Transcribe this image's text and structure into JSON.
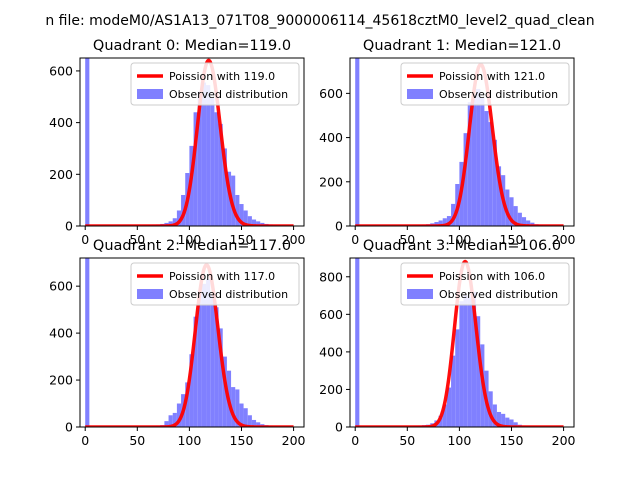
{
  "figure_title": "n file: modeM0/AS1A13_071T08_9000006114_45618cztM0_level2_quad_clean",
  "chart_data": [
    {
      "type": "bar",
      "title": "Quadrant 0: Median=119.0",
      "xlim": [
        -5,
        210
      ],
      "ylim": [
        0,
        650
      ],
      "xticks": [
        0,
        50,
        100,
        150,
        200
      ],
      "yticks": [
        0,
        200,
        400,
        600
      ],
      "poisson_mean": 119.0,
      "legend": [
        "Poission with 119.0",
        "Observed distribution"
      ],
      "legend_position": "top-right",
      "series": [
        {
          "name": "Observed distribution",
          "type": "histogram",
          "bin_width": 4,
          "bins": [
            {
              "x": 0,
              "y": 650
            },
            {
              "x": 52,
              "y": 2
            },
            {
              "x": 56,
              "y": 3
            },
            {
              "x": 60,
              "y": 4
            },
            {
              "x": 64,
              "y": 5
            },
            {
              "x": 68,
              "y": 6
            },
            {
              "x": 72,
              "y": 8
            },
            {
              "x": 76,
              "y": 12
            },
            {
              "x": 80,
              "y": 18
            },
            {
              "x": 84,
              "y": 30
            },
            {
              "x": 88,
              "y": 60
            },
            {
              "x": 92,
              "y": 120
            },
            {
              "x": 96,
              "y": 205
            },
            {
              "x": 100,
              "y": 310
            },
            {
              "x": 104,
              "y": 440
            },
            {
              "x": 108,
              "y": 520
            },
            {
              "x": 112,
              "y": 555
            },
            {
              "x": 116,
              "y": 545
            },
            {
              "x": 120,
              "y": 495
            },
            {
              "x": 124,
              "y": 440
            },
            {
              "x": 128,
              "y": 395
            },
            {
              "x": 132,
              "y": 300
            },
            {
              "x": 136,
              "y": 210
            },
            {
              "x": 140,
              "y": 195
            },
            {
              "x": 144,
              "y": 120
            },
            {
              "x": 148,
              "y": 85
            },
            {
              "x": 152,
              "y": 60
            },
            {
              "x": 156,
              "y": 38
            },
            {
              "x": 160,
              "y": 25
            },
            {
              "x": 164,
              "y": 18
            },
            {
              "x": 168,
              "y": 12
            },
            {
              "x": 172,
              "y": 8
            },
            {
              "x": 176,
              "y": 6
            },
            {
              "x": 180,
              "y": 4
            },
            {
              "x": 184,
              "y": 3
            },
            {
              "x": 188,
              "y": 2
            }
          ]
        },
        {
          "name": "Poission with 119.0",
          "type": "line",
          "peak": 640,
          "x_range": [
            0,
            200
          ]
        }
      ]
    },
    {
      "type": "bar",
      "title": "Quadrant 1: Median=121.0",
      "xlim": [
        -5,
        210
      ],
      "ylim": [
        0,
        760
      ],
      "xticks": [
        0,
        50,
        100,
        150,
        200
      ],
      "yticks": [
        0,
        200,
        400,
        600
      ],
      "poisson_mean": 121.0,
      "legend": [
        "Poission with 121.0",
        "Observed distribution"
      ],
      "legend_position": "top-right",
      "series": [
        {
          "name": "Observed distribution",
          "type": "histogram",
          "bin_width": 4,
          "bins": [
            {
              "x": 0,
              "y": 760
            },
            {
              "x": 56,
              "y": 3
            },
            {
              "x": 60,
              "y": 4
            },
            {
              "x": 64,
              "y": 6
            },
            {
              "x": 68,
              "y": 8
            },
            {
              "x": 72,
              "y": 12
            },
            {
              "x": 76,
              "y": 18
            },
            {
              "x": 80,
              "y": 25
            },
            {
              "x": 84,
              "y": 35
            },
            {
              "x": 88,
              "y": 45
            },
            {
              "x": 92,
              "y": 100
            },
            {
              "x": 96,
              "y": 190
            },
            {
              "x": 100,
              "y": 290
            },
            {
              "x": 104,
              "y": 420
            },
            {
              "x": 108,
              "y": 560
            },
            {
              "x": 112,
              "y": 600
            },
            {
              "x": 116,
              "y": 620
            },
            {
              "x": 120,
              "y": 580
            },
            {
              "x": 124,
              "y": 520
            },
            {
              "x": 128,
              "y": 470
            },
            {
              "x": 132,
              "y": 390
            },
            {
              "x": 136,
              "y": 270
            },
            {
              "x": 140,
              "y": 230
            },
            {
              "x": 144,
              "y": 165
            },
            {
              "x": 148,
              "y": 130
            },
            {
              "x": 152,
              "y": 90
            },
            {
              "x": 156,
              "y": 60
            },
            {
              "x": 160,
              "y": 40
            },
            {
              "x": 164,
              "y": 25
            },
            {
              "x": 168,
              "y": 15
            },
            {
              "x": 172,
              "y": 8
            },
            {
              "x": 176,
              "y": 5
            },
            {
              "x": 180,
              "y": 3
            },
            {
              "x": 184,
              "y": 2
            }
          ]
        },
        {
          "name": "Poission with 121.0",
          "type": "line",
          "peak": 730,
          "x_range": [
            0,
            200
          ]
        }
      ]
    },
    {
      "type": "bar",
      "title": "Quadrant 2: Median=117.0",
      "xlim": [
        -5,
        210
      ],
      "ylim": [
        0,
        720
      ],
      "xticks": [
        0,
        50,
        100,
        150,
        200
      ],
      "yticks": [
        0,
        200,
        400,
        600
      ],
      "poisson_mean": 117.0,
      "legend": [
        "Poission with 117.0",
        "Observed distribution"
      ],
      "legend_position": "top-right",
      "series": [
        {
          "name": "Observed distribution",
          "type": "histogram",
          "bin_width": 4,
          "bins": [
            {
              "x": 0,
              "y": 720
            },
            {
              "x": 56,
              "y": 2
            },
            {
              "x": 60,
              "y": 3
            },
            {
              "x": 64,
              "y": 4
            },
            {
              "x": 68,
              "y": 5
            },
            {
              "x": 72,
              "y": 8
            },
            {
              "x": 76,
              "y": 25
            },
            {
              "x": 80,
              "y": 50
            },
            {
              "x": 84,
              "y": 60
            },
            {
              "x": 88,
              "y": 100
            },
            {
              "x": 92,
              "y": 140
            },
            {
              "x": 96,
              "y": 190
            },
            {
              "x": 100,
              "y": 310
            },
            {
              "x": 104,
              "y": 470
            },
            {
              "x": 108,
              "y": 580
            },
            {
              "x": 112,
              "y": 610
            },
            {
              "x": 116,
              "y": 630
            },
            {
              "x": 120,
              "y": 560
            },
            {
              "x": 124,
              "y": 510
            },
            {
              "x": 128,
              "y": 420
            },
            {
              "x": 132,
              "y": 300
            },
            {
              "x": 136,
              "y": 240
            },
            {
              "x": 140,
              "y": 170
            },
            {
              "x": 144,
              "y": 160
            },
            {
              "x": 148,
              "y": 100
            },
            {
              "x": 152,
              "y": 80
            },
            {
              "x": 156,
              "y": 50
            },
            {
              "x": 160,
              "y": 30
            },
            {
              "x": 164,
              "y": 20
            },
            {
              "x": 168,
              "y": 12
            },
            {
              "x": 172,
              "y": 8
            },
            {
              "x": 176,
              "y": 5
            },
            {
              "x": 180,
              "y": 3
            },
            {
              "x": 184,
              "y": 2
            }
          ]
        },
        {
          "name": "Poission with 117.0",
          "type": "line",
          "peak": 690,
          "x_range": [
            0,
            200
          ]
        }
      ]
    },
    {
      "type": "bar",
      "title": "Quadrant 3: Median=106.0",
      "xlim": [
        -5,
        210
      ],
      "ylim": [
        0,
        900
      ],
      "xticks": [
        0,
        50,
        100,
        150,
        200
      ],
      "yticks": [
        0,
        200,
        400,
        600,
        800
      ],
      "poisson_mean": 106.0,
      "legend": [
        "Poission with 106.0",
        "Observed distribution"
      ],
      "legend_position": "top-right",
      "series": [
        {
          "name": "Observed distribution",
          "type": "histogram",
          "bin_width": 4,
          "bins": [
            {
              "x": 0,
              "y": 900
            },
            {
              "x": 48,
              "y": 2
            },
            {
              "x": 52,
              "y": 4
            },
            {
              "x": 56,
              "y": 6
            },
            {
              "x": 60,
              "y": 8
            },
            {
              "x": 64,
              "y": 10
            },
            {
              "x": 68,
              "y": 12
            },
            {
              "x": 72,
              "y": 20
            },
            {
              "x": 76,
              "y": 35
            },
            {
              "x": 80,
              "y": 60
            },
            {
              "x": 84,
              "y": 120
            },
            {
              "x": 88,
              "y": 210
            },
            {
              "x": 92,
              "y": 380
            },
            {
              "x": 96,
              "y": 520
            },
            {
              "x": 100,
              "y": 670
            },
            {
              "x": 104,
              "y": 700
            },
            {
              "x": 108,
              "y": 690
            },
            {
              "x": 112,
              "y": 720
            },
            {
              "x": 116,
              "y": 590
            },
            {
              "x": 120,
              "y": 440
            },
            {
              "x": 124,
              "y": 300
            },
            {
              "x": 128,
              "y": 190
            },
            {
              "x": 132,
              "y": 120
            },
            {
              "x": 136,
              "y": 80
            },
            {
              "x": 140,
              "y": 70
            },
            {
              "x": 144,
              "y": 50
            },
            {
              "x": 148,
              "y": 40
            },
            {
              "x": 152,
              "y": 25
            },
            {
              "x": 156,
              "y": 12
            },
            {
              "x": 160,
              "y": 8
            },
            {
              "x": 164,
              "y": 6
            },
            {
              "x": 168,
              "y": 4
            },
            {
              "x": 172,
              "y": 3
            },
            {
              "x": 176,
              "y": 2
            }
          ]
        },
        {
          "name": "Poission with 106.0",
          "type": "line",
          "peak": 880,
          "x_range": [
            0,
            200
          ]
        }
      ]
    }
  ],
  "colors": {
    "poisson_line": "#ff0000",
    "histogram_fill": "#8080ff",
    "axis": "#000000"
  }
}
